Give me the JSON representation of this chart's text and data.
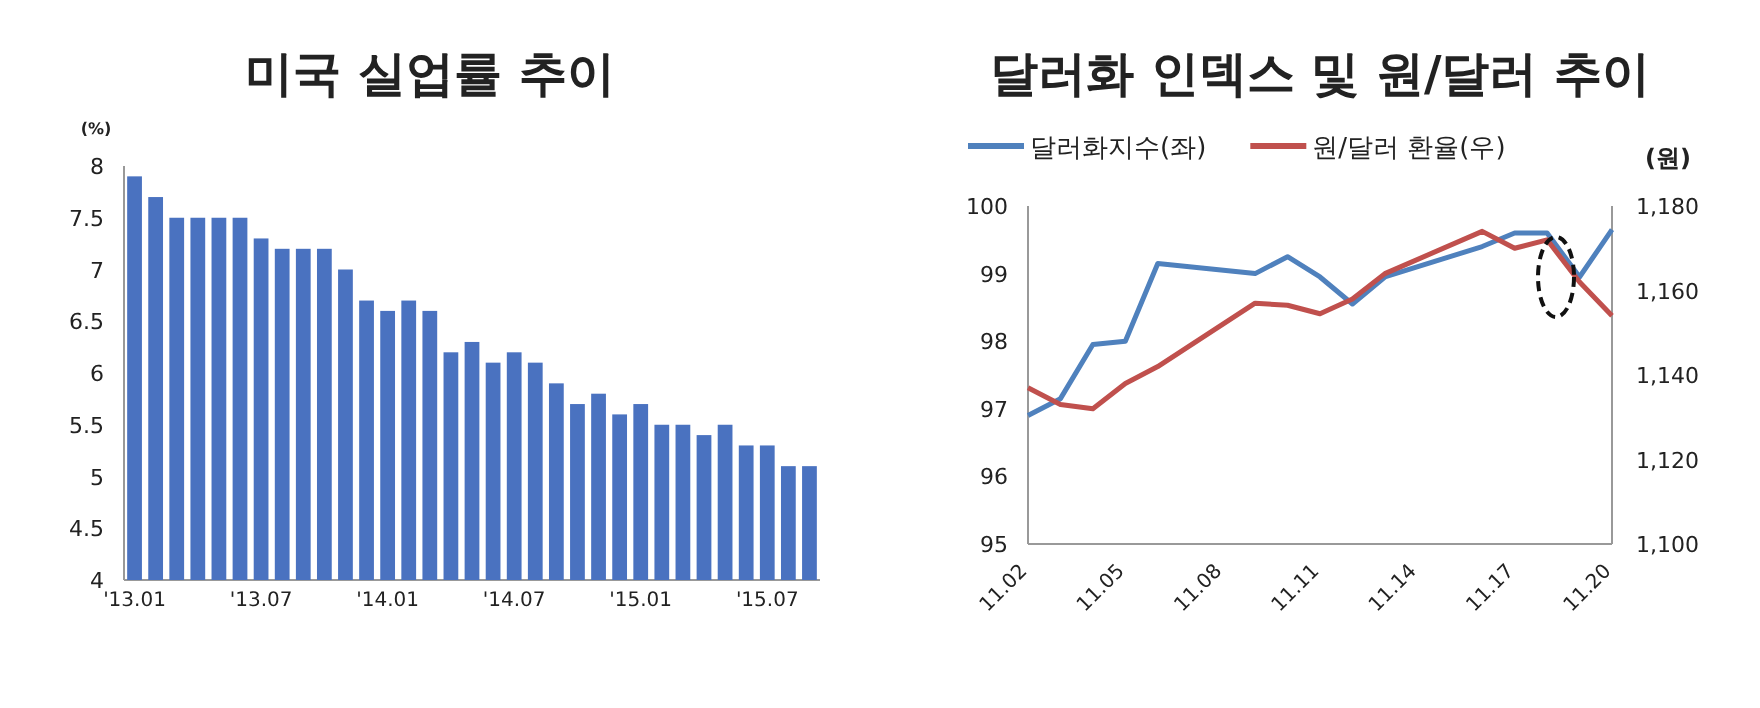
{
  "chart_data": [
    {
      "type": "bar",
      "title": "미국 실업률 추이",
      "ylabel": "(%)",
      "color": "#4a72c0",
      "categories": [
        "'13.01",
        null,
        null,
        null,
        null,
        null,
        "'13.07",
        null,
        null,
        null,
        null,
        null,
        "'14.01",
        null,
        null,
        null,
        null,
        null,
        "'14.07",
        null,
        null,
        null,
        null,
        null,
        "'15.01",
        null,
        null,
        null,
        null,
        null,
        "'15.07",
        null,
        null
      ],
      "values": [
        7.9,
        7.7,
        7.5,
        7.5,
        7.5,
        7.5,
        7.3,
        7.2,
        7.2,
        7.2,
        7.0,
        6.7,
        6.6,
        6.7,
        6.6,
        6.2,
        6.3,
        6.1,
        6.2,
        6.1,
        5.9,
        5.7,
        5.8,
        5.6,
        5.7,
        5.5,
        5.5,
        5.4,
        5.5,
        5.3,
        5.3,
        5.1,
        5.1
      ],
      "ylim": [
        4,
        8
      ],
      "yticks": [
        4,
        4.5,
        5,
        5.5,
        6,
        6.5,
        7,
        7.5,
        8
      ]
    },
    {
      "type": "line",
      "title": "달러화 인덱스 및 원/달러 추이",
      "y2label": "(원)",
      "legend": "top",
      "series": [
        {
          "name": "달러화지수(좌)",
          "color": "#4f81bd",
          "x": [
            "--11-02",
            "--11-03",
            "--11-04",
            "--11-05",
            "--11-06",
            "--11-09",
            "--11-10",
            "--11-11",
            "--11-12",
            "--11-13",
            "--11-16",
            "--11-17",
            "--11-18",
            "--11-19",
            "--11-20"
          ],
          "values": [
            96.9,
            97.15,
            97.95,
            98.0,
            99.15,
            99.0,
            99.25,
            98.95,
            98.55,
            98.95,
            99.4,
            99.6,
            99.6,
            98.95,
            99.65
          ]
        },
        {
          "name": "원/달러 환율(우)",
          "color": "#c0504d",
          "axis": "y2",
          "x": [
            "--11-02",
            "--11-03",
            "--11-04",
            "--11-05",
            "--11-06",
            "--11-09",
            "--11-10",
            "--11-11",
            "--11-12",
            "--11-13",
            "--11-16",
            "--11-17",
            "--11-18",
            "--11-19",
            "--11-20"
          ],
          "values": [
            1137,
            1133,
            1132,
            1138,
            1142,
            1157,
            1156.5,
            1154.5,
            1158,
            1164,
            1174,
            1170,
            1172,
            1162,
            1154
          ]
        }
      ],
      "xlim": [
        "--11-02",
        "--11-20"
      ],
      "xticks": [
        {
          "value": "--11-02",
          "label": "11.02"
        },
        {
          "value": "--11-05",
          "label": "11.05"
        },
        {
          "value": "--11-08",
          "label": "11.08"
        },
        {
          "value": "--11-11",
          "label": "11.11"
        },
        {
          "value": "--11-14",
          "label": "11.14"
        },
        {
          "value": "--11-17",
          "label": "11.17"
        },
        {
          "value": "--11-20",
          "label": "11.20"
        }
      ],
      "ylim": [
        95,
        100
      ],
      "yticks": [
        95,
        96,
        97,
        98,
        99,
        100
      ],
      "y2lim": [
        1100,
        1180
      ],
      "y2ticks": [
        {
          "value": 1100,
          "label": "1,100"
        },
        {
          "value": 1120,
          "label": "1,120"
        },
        {
          "value": 1140,
          "label": "1,140"
        },
        {
          "value": 1160,
          "label": "1,160"
        },
        {
          "value": 1180,
          "label": "1,180"
        }
      ]
    }
  ]
}
